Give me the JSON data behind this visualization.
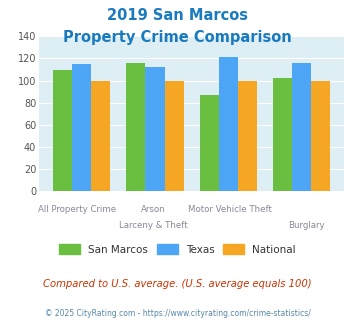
{
  "title_line1": "2019 San Marcos",
  "title_line2": "Property Crime Comparison",
  "title_color": "#1a7abf",
  "cat_labels_top": [
    "All Property Crime",
    "",
    "Motor Vehicle Theft",
    ""
  ],
  "cat_labels_bottom": [
    "",
    "Arson\nLarceny & Theft",
    "",
    "Burglary"
  ],
  "san_marcos": [
    110,
    116,
    87,
    102
  ],
  "texas": [
    115,
    112,
    121,
    116
  ],
  "national": [
    100,
    100,
    100,
    100
  ],
  "san_marcos_color": "#6abf40",
  "texas_color": "#4da6f5",
  "national_color": "#f5a623",
  "ylim": [
    0,
    140
  ],
  "yticks": [
    0,
    20,
    40,
    60,
    80,
    100,
    120,
    140
  ],
  "plot_bg_color": "#ddeef5",
  "legend_labels": [
    "San Marcos",
    "Texas",
    "National"
  ],
  "footnote1": "Compared to U.S. average. (U.S. average equals 100)",
  "footnote2": "© 2025 CityRating.com - https://www.cityrating.com/crime-statistics/",
  "footnote1_color": "#cc3300",
  "footnote2_color": "#5588aa"
}
